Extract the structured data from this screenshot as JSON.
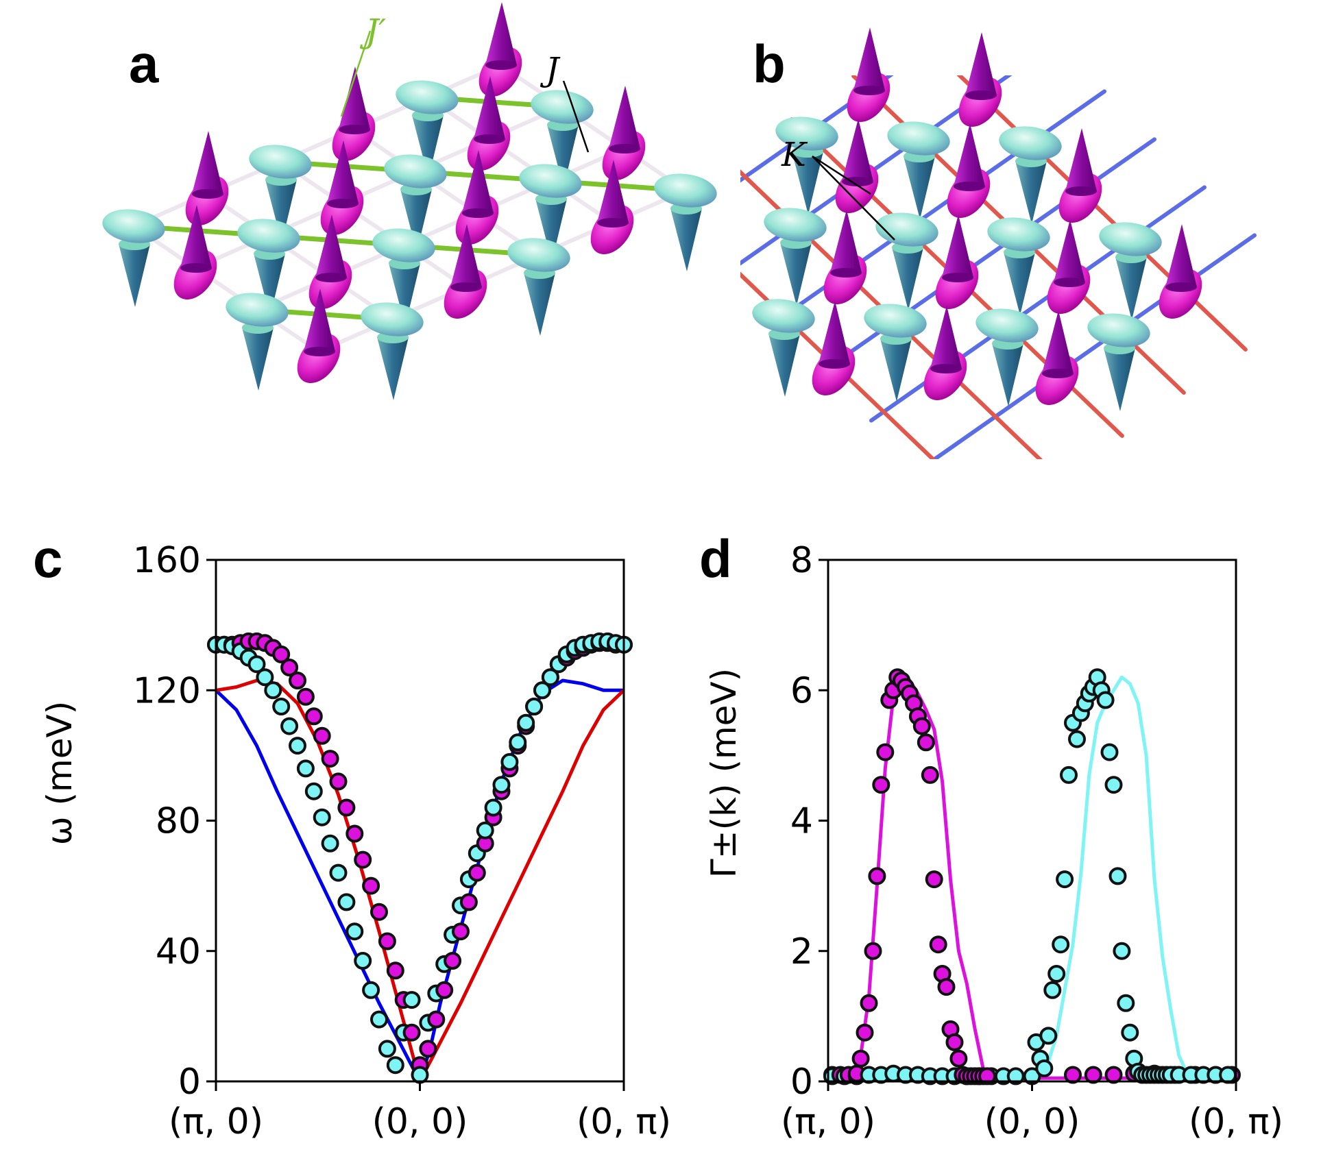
{
  "figure": {
    "panel_labels": [
      "a",
      "b",
      "c",
      "d"
    ],
    "annotations": {
      "a_jprime": "J′",
      "a_j": "J",
      "b_k": "K"
    },
    "colors": {
      "spin_up": "#a000b4",
      "spin_down": "#2e6f93",
      "disc_cyan": "#8ee6d3",
      "bond_green": "#7cc22b",
      "bond_white": "#eee6ee",
      "bond_red": "#e2574c",
      "bond_blue": "#5a6de6",
      "magenta": "#dd11dd",
      "cyan": "#7ef4f4",
      "red": "#dd0000",
      "blue": "#0000ee"
    }
  },
  "chart_data": [
    {
      "panel": "c",
      "type": "line",
      "xlabel": "",
      "ylabel": "ω (meV)",
      "x_ticks": [
        "(π, 0)",
        "(0, 0)",
        "(0, π)"
      ],
      "xlim": [
        0,
        2
      ],
      "ylim": [
        0,
        160
      ],
      "y_ticks": [
        "0",
        "40",
        "80",
        "120",
        "160"
      ],
      "series": [
        {
          "name": "blue line",
          "kind": "line",
          "color": "#0000ee",
          "x": [
            0,
            0.1,
            0.2,
            0.3,
            0.4,
            0.5,
            0.6,
            0.7,
            0.8,
            0.9,
            1.0,
            1.05,
            1.1,
            1.2,
            1.3,
            1.4,
            1.5,
            1.6,
            1.7,
            1.8,
            1.9,
            2.0
          ],
          "y": [
            120,
            114,
            103,
            89,
            76,
            63,
            50,
            37,
            24,
            12,
            0,
            10,
            24,
            47,
            70,
            92,
            108,
            119,
            123,
            122,
            120,
            120
          ]
        },
        {
          "name": "red line",
          "kind": "line",
          "color": "#dd0000",
          "x": [
            0,
            0.1,
            0.2,
            0.3,
            0.4,
            0.5,
            0.6,
            0.7,
            0.8,
            0.9,
            1.0,
            1.1,
            1.2,
            1.3,
            1.4,
            1.5,
            1.6,
            1.7,
            1.8,
            1.9,
            2.0
          ],
          "y": [
            120,
            121,
            123,
            122,
            116,
            104,
            88,
            68,
            46,
            23,
            0,
            12,
            24,
            37,
            50,
            63,
            76,
            89,
            103,
            114,
            120
          ]
        },
        {
          "name": "magenta points",
          "kind": "scatter",
          "color": "#dd11dd",
          "x": [
            0.0,
            0.04,
            0.08,
            0.12,
            0.16,
            0.2,
            0.24,
            0.28,
            0.32,
            0.36,
            0.4,
            0.44,
            0.48,
            0.52,
            0.56,
            0.6,
            0.64,
            0.68,
            0.72,
            0.76,
            0.8,
            0.84,
            0.88,
            0.92,
            0.96,
            1.0,
            1.04,
            1.08,
            1.12,
            1.16,
            1.2,
            1.24,
            1.28,
            1.32,
            1.36,
            1.4,
            1.44,
            1.48,
            1.52,
            1.56,
            1.6,
            1.64,
            1.68,
            1.72,
            1.76,
            1.8,
            1.84,
            1.88,
            1.92,
            1.96,
            2.0
          ],
          "y": [
            134,
            134,
            134,
            134.5,
            135,
            135,
            134.5,
            133,
            131,
            127,
            123,
            118,
            112,
            106,
            99,
            92,
            84,
            76,
            68,
            60,
            52,
            43,
            34,
            25,
            15,
            5,
            10,
            19,
            28,
            37,
            46,
            55,
            64,
            73,
            81,
            89,
            96,
            103,
            109,
            115,
            120,
            124,
            128,
            130,
            132,
            133,
            134,
            134.5,
            134.5,
            134,
            134
          ]
        },
        {
          "name": "cyan points",
          "kind": "scatter",
          "color": "#7ef4f4",
          "x": [
            0.0,
            0.04,
            0.08,
            0.12,
            0.16,
            0.2,
            0.24,
            0.28,
            0.32,
            0.36,
            0.4,
            0.44,
            0.48,
            0.52,
            0.56,
            0.6,
            0.64,
            0.68,
            0.72,
            0.76,
            0.8,
            0.84,
            0.88,
            0.92,
            0.96,
            1.0,
            1.04,
            1.08,
            1.12,
            1.16,
            1.2,
            1.24,
            1.28,
            1.32,
            1.36,
            1.4,
            1.44,
            1.48,
            1.52,
            1.56,
            1.6,
            1.64,
            1.68,
            1.72,
            1.76,
            1.8,
            1.84,
            1.88,
            1.92,
            1.96,
            2.0
          ],
          "y": [
            134,
            134,
            133.5,
            132,
            130,
            128,
            124,
            120,
            115,
            109,
            103,
            96,
            89,
            81,
            73,
            64,
            55,
            46,
            37,
            28,
            19,
            10,
            5,
            15,
            25,
            2,
            18,
            27,
            36,
            45,
            54,
            62,
            70,
            77,
            84,
            91,
            98,
            104,
            110,
            115,
            120,
            124,
            128,
            131,
            133,
            134,
            134.5,
            135,
            135,
            134.5,
            134
          ]
        }
      ]
    },
    {
      "panel": "d",
      "type": "line",
      "xlabel": "",
      "ylabel": "Γ±(k) (meV)",
      "x_ticks": [
        "(π, 0)",
        "(0, 0)",
        "(0, π)"
      ],
      "xlim": [
        0,
        2
      ],
      "ylim": [
        0,
        8
      ],
      "y_ticks": [
        "0",
        "2",
        "4",
        "6",
        "8"
      ],
      "series": [
        {
          "name": "magenta line",
          "kind": "line",
          "color": "#dd11dd",
          "x": [
            0,
            0.12,
            0.16,
            0.2,
            0.24,
            0.28,
            0.32,
            0.36,
            0.4,
            0.44,
            0.48,
            0.52,
            0.56,
            0.6,
            0.64,
            0.68,
            0.72,
            0.76,
            0.8,
            0.84,
            0.88,
            0.92,
            2.0
          ],
          "y": [
            0.1,
            0.12,
            0.4,
            1.3,
            3.0,
            4.8,
            5.9,
            6.2,
            6.15,
            5.95,
            5.7,
            5.4,
            4.6,
            3.1,
            2.0,
            1.5,
            0.8,
            0.2,
            0.05,
            0.05,
            0.05,
            0.05,
            0.05
          ]
        },
        {
          "name": "cyan line",
          "kind": "line",
          "color": "#7ef4f4",
          "x": [
            0,
            1.0,
            1.04,
            1.08,
            1.12,
            1.16,
            1.2,
            1.24,
            1.28,
            1.32,
            1.36,
            1.4,
            1.44,
            1.48,
            1.52,
            1.56,
            1.6,
            1.64,
            1.68,
            1.72,
            1.76,
            1.8,
            1.84,
            1.88,
            2.0
          ],
          "y": [
            0.05,
            0.05,
            0.1,
            0.3,
            0.7,
            1.4,
            2.1,
            3.2,
            4.7,
            5.5,
            5.8,
            6.0,
            6.2,
            6.1,
            5.8,
            5.0,
            3.1,
            1.9,
            1.1,
            0.4,
            0.12,
            0.1,
            0.08,
            0.08,
            0.08
          ]
        },
        {
          "name": "magenta points",
          "kind": "scatter",
          "color": "#dd11dd",
          "x": [
            0.02,
            0.06,
            0.1,
            0.14,
            0.16,
            0.18,
            0.2,
            0.22,
            0.24,
            0.26,
            0.28,
            0.3,
            0.32,
            0.34,
            0.36,
            0.38,
            0.4,
            0.42,
            0.44,
            0.46,
            0.48,
            0.5,
            0.52,
            0.54,
            0.56,
            0.58,
            0.6,
            0.62,
            0.64,
            0.66,
            0.68,
            0.7,
            0.72,
            0.74,
            0.76,
            0.78,
            1.2,
            1.3,
            1.4,
            1.5,
            1.6,
            1.7,
            1.8,
            1.9,
            1.98
          ],
          "y": [
            0.1,
            0.1,
            0.1,
            0.12,
            0.35,
            0.75,
            1.2,
            2.0,
            3.15,
            4.55,
            5.05,
            5.85,
            6.0,
            6.2,
            6.15,
            6.05,
            5.95,
            5.8,
            5.6,
            5.45,
            5.2,
            4.7,
            3.1,
            2.1,
            1.65,
            1.45,
            0.8,
            0.6,
            0.35,
            0.1,
            0.08,
            0.08,
            0.08,
            0.08,
            0.08,
            0.08,
            0.1,
            0.1,
            0.1,
            0.12,
            0.12,
            0.1,
            0.1,
            0.1,
            0.1
          ]
        },
        {
          "name": "cyan points",
          "kind": "scatter",
          "color": "#7ef4f4",
          "x": [
            0.02,
            0.08,
            0.14,
            0.2,
            0.26,
            0.32,
            0.38,
            0.44,
            0.5,
            0.56,
            0.62,
            0.68,
            0.74,
            0.8,
            0.86,
            0.92,
            1.0,
            1.02,
            1.04,
            1.06,
            1.08,
            1.1,
            1.12,
            1.14,
            1.16,
            1.18,
            1.2,
            1.22,
            1.24,
            1.26,
            1.28,
            1.3,
            1.32,
            1.34,
            1.36,
            1.38,
            1.4,
            1.42,
            1.44,
            1.46,
            1.48,
            1.5,
            1.52,
            1.54,
            1.56,
            1.58,
            1.6,
            1.62,
            1.64,
            1.66,
            1.68,
            1.72,
            1.78,
            1.84,
            1.9,
            1.96
          ],
          "y": [
            0.08,
            0.08,
            0.08,
            0.1,
            0.1,
            0.12,
            0.1,
            0.1,
            0.08,
            0.08,
            0.08,
            0.08,
            0.08,
            0.08,
            0.08,
            0.08,
            0.08,
            0.6,
            0.35,
            0.2,
            0.7,
            1.4,
            1.65,
            2.1,
            3.1,
            4.7,
            5.5,
            5.25,
            5.65,
            5.8,
            5.95,
            6.05,
            6.2,
            6.0,
            5.85,
            5.05,
            4.55,
            3.15,
            2.0,
            1.2,
            0.75,
            0.35,
            0.15,
            0.1,
            0.1,
            0.1,
            0.1,
            0.1,
            0.1,
            0.1,
            0.1,
            0.1,
            0.1,
            0.1,
            0.1,
            0.1
          ]
        }
      ]
    }
  ]
}
